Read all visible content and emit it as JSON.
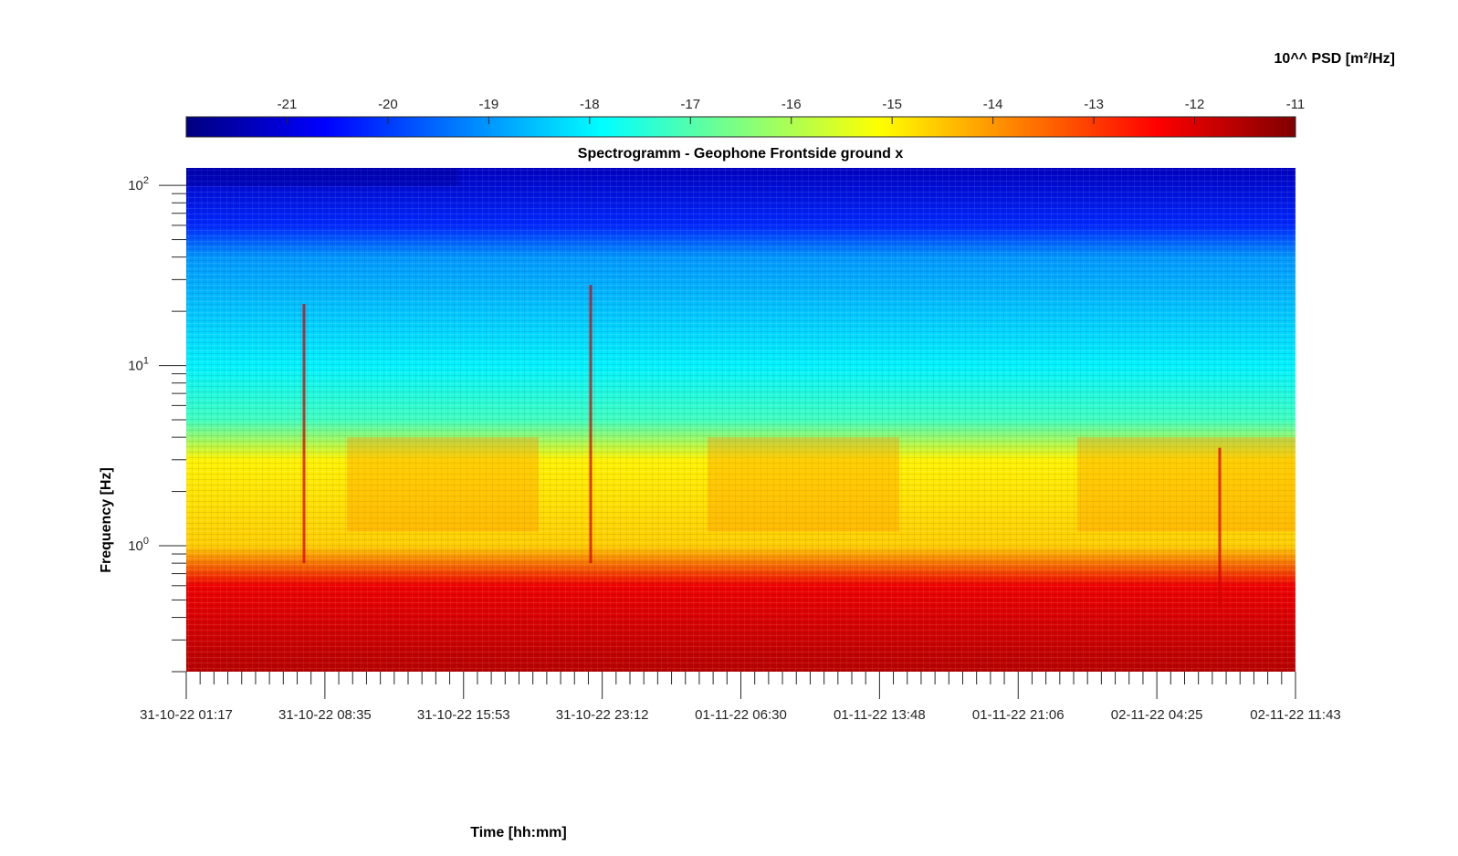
{
  "chart_data": {
    "type": "heatmap",
    "title": "Spectrogramm - Geophone Frontside ground x",
    "xlabel": "Time [hh:mm]",
    "ylabel": "Frequency [Hz]",
    "y_scale": "log",
    "ylim": [
      0.2,
      125
    ],
    "y_ticks": [
      {
        "value": 1,
        "base": "10",
        "exp": "0"
      },
      {
        "value": 10,
        "base": "10",
        "exp": "1"
      },
      {
        "value": 100,
        "base": "10",
        "exp": "2"
      }
    ],
    "x_tick_labels": [
      "31-10-22 01:17",
      "31-10-22 08:35",
      "31-10-22 15:53",
      "31-10-22 23:12",
      "01-11-22 06:30",
      "01-11-22 13:48",
      "01-11-22 21:06",
      "02-11-22 04:25",
      "02-11-22 11:43"
    ],
    "colorbar": {
      "label": "10^^ PSD [m²/Hz]",
      "range": [
        -22,
        -11
      ],
      "ticks": [
        "-21",
        "-20",
        "-19",
        "-18",
        "-17",
        "-16",
        "-15",
        "-14",
        "-13",
        "-12",
        "-11"
      ],
      "colormap": "jet"
    },
    "psd_log10_profile": [
      {
        "freq_hz": 125,
        "value": -21.3
      },
      {
        "freq_hz": 60,
        "value": -20.2
      },
      {
        "freq_hz": 40,
        "value": -19.0
      },
      {
        "freq_hz": 20,
        "value": -18.5
      },
      {
        "freq_hz": 10,
        "value": -18.0
      },
      {
        "freq_hz": 5,
        "value": -17.2
      },
      {
        "freq_hz": 3,
        "value": -15.0
      },
      {
        "freq_hz": 1,
        "value": -14.6
      },
      {
        "freq_hz": 0.6,
        "value": -12.2
      },
      {
        "freq_hz": 0.2,
        "value": -11.6
      }
    ]
  }
}
